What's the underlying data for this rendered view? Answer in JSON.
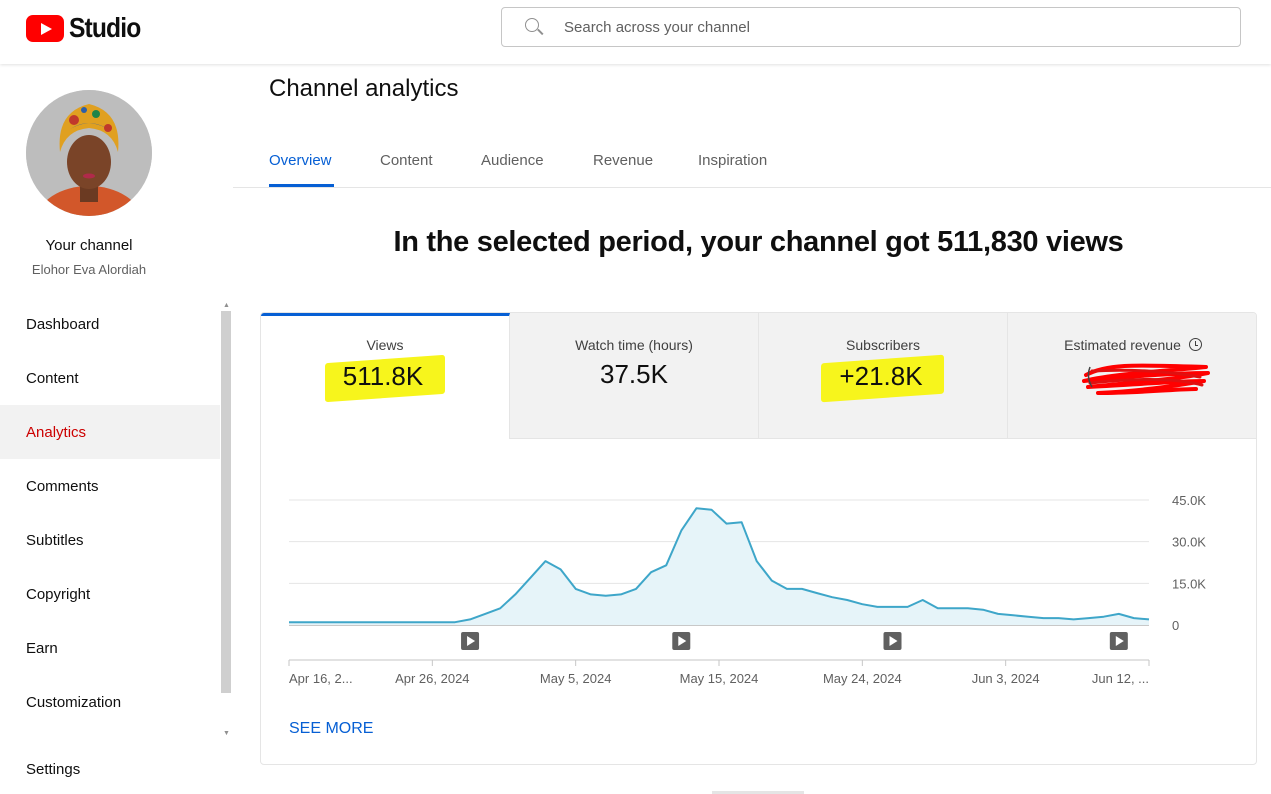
{
  "header": {
    "logo_text": "Studio",
    "search_placeholder": "Search across your channel"
  },
  "sidebar": {
    "your_channel_label": "Your channel",
    "channel_name": "Elohor Eva Alordiah",
    "items": [
      {
        "label": "Dashboard",
        "active": false
      },
      {
        "label": "Content",
        "active": false
      },
      {
        "label": "Analytics",
        "active": true
      },
      {
        "label": "Comments",
        "active": false
      },
      {
        "label": "Subtitles",
        "active": false
      },
      {
        "label": "Copyright",
        "active": false
      },
      {
        "label": "Earn",
        "active": false
      },
      {
        "label": "Customization",
        "active": false
      },
      {
        "label": "Settings",
        "active": false
      }
    ]
  },
  "main": {
    "title": "Channel analytics",
    "tabs": [
      {
        "label": "Overview",
        "active": true
      },
      {
        "label": "Content",
        "active": false
      },
      {
        "label": "Audience",
        "active": false
      },
      {
        "label": "Revenue",
        "active": false
      },
      {
        "label": "Inspiration",
        "active": false
      }
    ],
    "headline": "In the selected period, your channel got 511,830 views",
    "metrics": [
      {
        "label": "Views",
        "value": "511.8K"
      },
      {
        "label": "Watch time (hours)",
        "value": "37.5K"
      },
      {
        "label": "Subscribers",
        "value": "+21.8K"
      },
      {
        "label": "Estimated revenue",
        "value": ""
      }
    ],
    "see_more": "SEE MORE"
  },
  "colors": {
    "accent": "#065fd4",
    "active_nav": "#cc0000",
    "line": "#3ea6c9",
    "fill": "#e6f4f9",
    "highlight": "#f7f51c",
    "redaction": "#ff0000"
  },
  "chart_data": {
    "type": "area",
    "series": [
      {
        "values": [
          1000,
          1000,
          1000,
          1000,
          1000,
          1000,
          1000,
          1000,
          1000,
          1000,
          1000,
          1000,
          2000,
          4000,
          6000,
          11000,
          17000,
          23000,
          20000,
          13000,
          11000,
          10500,
          11000,
          13000,
          19000,
          21500,
          34000,
          42000,
          41500,
          36500,
          37000,
          23000,
          16000,
          13000,
          13000,
          11500,
          10000,
          9000,
          7500,
          6500,
          6500,
          6500,
          9000,
          6000,
          6000,
          6000,
          5500,
          4000,
          3500,
          3000,
          2500,
          2500,
          2000,
          2500,
          3000,
          4000,
          2500,
          2000
        ]
      }
    ],
    "x_tick_labels": [
      "Apr 16, 2...",
      "Apr 26, 2024",
      "May 5, 2024",
      "May 15, 2024",
      "May 24, 2024",
      "Jun 3, 2024",
      "Jun 12, ..."
    ],
    "y_tick_labels": [
      "45.0K",
      "30.0K",
      "15.0K",
      "0"
    ],
    "ylim": [
      0,
      45000
    ],
    "video_markers": [
      12,
      26,
      40,
      55
    ],
    "grid": true
  }
}
